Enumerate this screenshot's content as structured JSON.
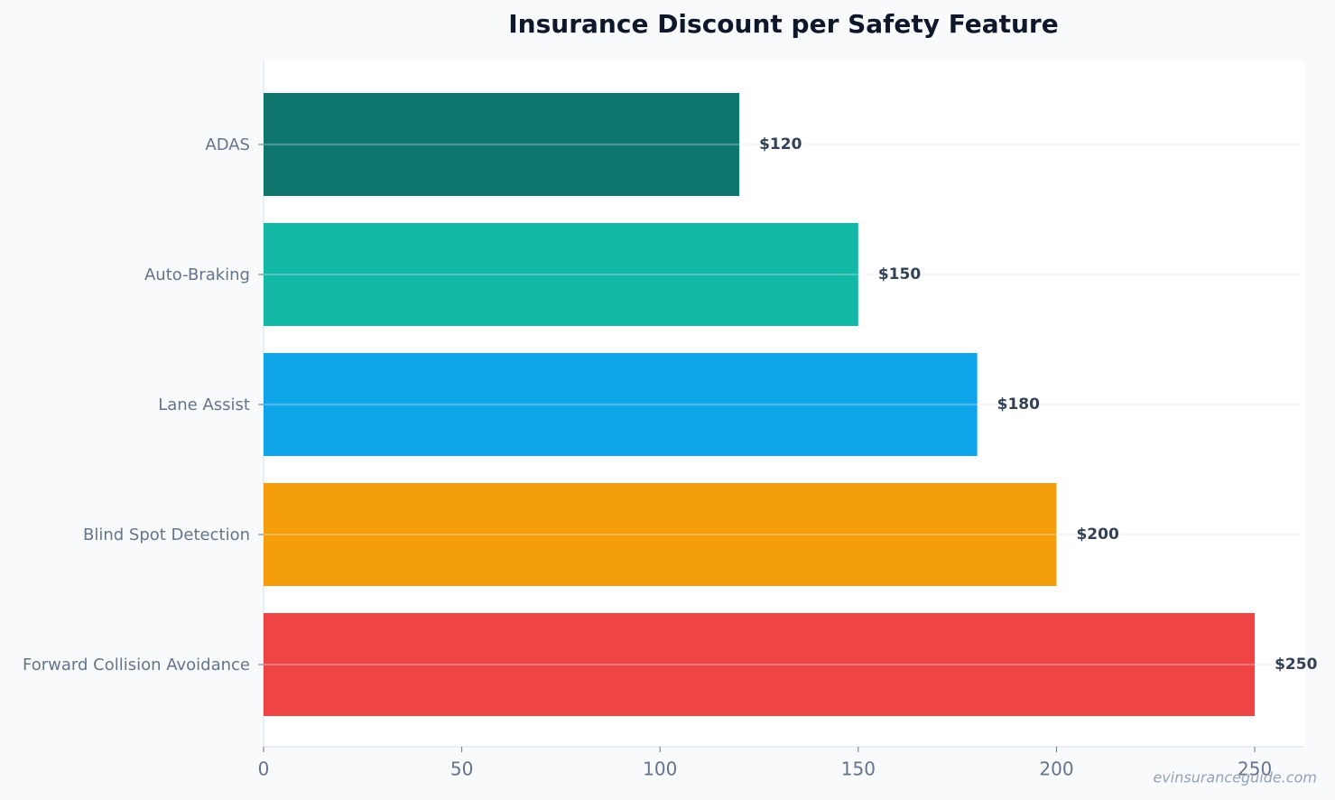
{
  "chart_data": {
    "type": "barh",
    "title": "Insurance Discount per Safety Feature",
    "categories": [
      "ADAS",
      "Auto-Braking",
      "Lane Assist",
      "Blind Spot Detection",
      "Forward Collision Avoidance"
    ],
    "values": [
      120,
      150,
      180,
      200,
      250
    ],
    "value_labels": [
      "$120",
      "$150",
      "$180",
      "$200",
      "$250"
    ],
    "colors": [
      "#0f766e",
      "#14b8a6",
      "#0ea5e9",
      "#f59e0b",
      "#ef4444"
    ],
    "xlim": [
      0,
      262.5
    ],
    "xticks": [
      0,
      50,
      100,
      150,
      200,
      250
    ],
    "grid": true,
    "watermark": "evinsuranceguide.com"
  }
}
